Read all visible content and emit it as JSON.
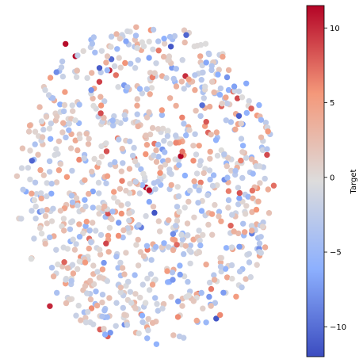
{
  "chart_data": {
    "type": "scatter",
    "title": "",
    "xlabel": "",
    "ylabel": "",
    "axes_visible": false,
    "grid": false,
    "n_points": 1000,
    "seed": 7,
    "colormap": "coolwarm",
    "colormap_stops": [
      "#3b4cc0",
      "#8db0fe",
      "#dddcdc",
      "#f4987a",
      "#b40426"
    ],
    "colorbar": {
      "label": "Target",
      "vmin": -12,
      "vmax": 11.5,
      "ticks": [
        10,
        5,
        0,
        -5,
        -10
      ],
      "tick_labels": [
        "10",
        "5",
        "0",
        "−5",
        "−10"
      ],
      "placement": "right"
    },
    "highlighted_points": [
      {
        "x": -0.62,
        "y": 0.87,
        "value": 11.2
      },
      {
        "x": 0.02,
        "y": -0.04,
        "value": 11.0
      },
      {
        "x": -0.74,
        "y": -0.76,
        "value": 10.1
      },
      {
        "x": 0.06,
        "y": -0.18,
        "value": -11.5
      }
    ]
  }
}
